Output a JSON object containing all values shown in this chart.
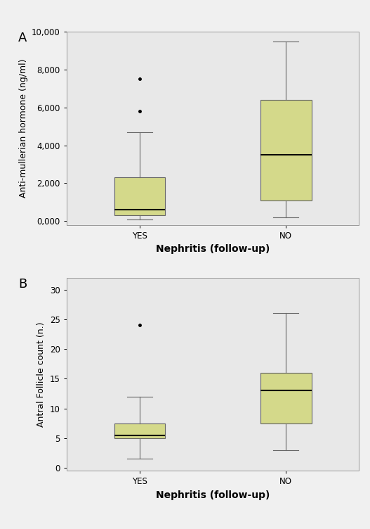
{
  "panel_A": {
    "ylabel": "Anti-mullerian hormone (ng/ml)",
    "xlabel": "Nephritis (follow-up)",
    "ylim": [
      -200,
      10000
    ],
    "yticks": [
      0,
      2000,
      4000,
      6000,
      8000,
      10000
    ],
    "ytick_labels": [
      "0,000",
      "2,000",
      "4,000",
      "6,000",
      "8,000",
      "10,000"
    ],
    "categories": [
      "YES",
      "NO"
    ],
    "boxes": [
      {
        "q1": 300,
        "median": 600,
        "q3": 2300,
        "whislo": 100,
        "whishi": 4700,
        "fliers": [
          5800,
          7500
        ]
      },
      {
        "q1": 1100,
        "median": 3500,
        "q3": 6400,
        "whislo": 200,
        "whishi": 9500,
        "fliers": []
      }
    ],
    "label": "A"
  },
  "panel_B": {
    "ylabel": "Antral Follicle count (n.)",
    "xlabel": "Nephritis (follow-up)",
    "ylim": [
      -0.5,
      32
    ],
    "yticks": [
      0,
      5,
      10,
      15,
      20,
      25,
      30
    ],
    "ytick_labels": [
      "0",
      "5",
      "10",
      "15",
      "20",
      "25",
      "30"
    ],
    "categories": [
      "YES",
      "NO"
    ],
    "boxes": [
      {
        "q1": 5.0,
        "median": 5.5,
        "q3": 7.5,
        "whislo": 1.5,
        "whishi": 12,
        "fliers": [
          24
        ]
      },
      {
        "q1": 7.5,
        "median": 13.0,
        "q3": 16.0,
        "whislo": 3.0,
        "whishi": 26,
        "fliers": []
      }
    ],
    "label": "B"
  },
  "box_facecolor": "#d4d98a",
  "box_edgecolor": "#666666",
  "median_color": "#000000",
  "whisker_color": "#666666",
  "cap_color": "#666666",
  "flier_color": "#000000",
  "bg_color": "#e8e8e8",
  "fig_bg_color": "#f0f0f0",
  "box_width": 0.35,
  "tick_fontsize": 8.5,
  "xlabel_fontsize": 10,
  "ylabel_fontsize": 9,
  "panel_label_fontsize": 13
}
